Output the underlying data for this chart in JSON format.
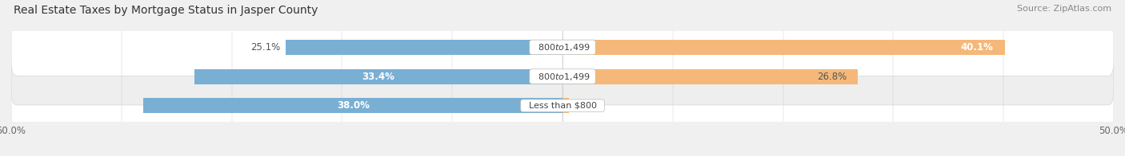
{
  "title": "Real Estate Taxes by Mortgage Status in Jasper County",
  "source": "Source: ZipAtlas.com",
  "categories": [
    "Less than $800",
    "$800 to $1,499",
    "$800 to $1,499"
  ],
  "without_mortgage": [
    38.0,
    33.4,
    25.1
  ],
  "with_mortgage": [
    0.59,
    26.8,
    40.1
  ],
  "color_without": "#7aafd4",
  "color_with": "#f5b87a",
  "xlim_left": -50,
  "xlim_right": 50,
  "bar_height": 0.52,
  "row_colors": [
    "#f2f2f2",
    "#ebebeb",
    "#f2f2f2"
  ],
  "title_fontsize": 10,
  "source_fontsize": 8,
  "label_fontsize": 8.5,
  "tick_fontsize": 8.5,
  "legend_fontsize": 9,
  "without_label_inside_threshold": 10,
  "with_label_inside_threshold": 5
}
